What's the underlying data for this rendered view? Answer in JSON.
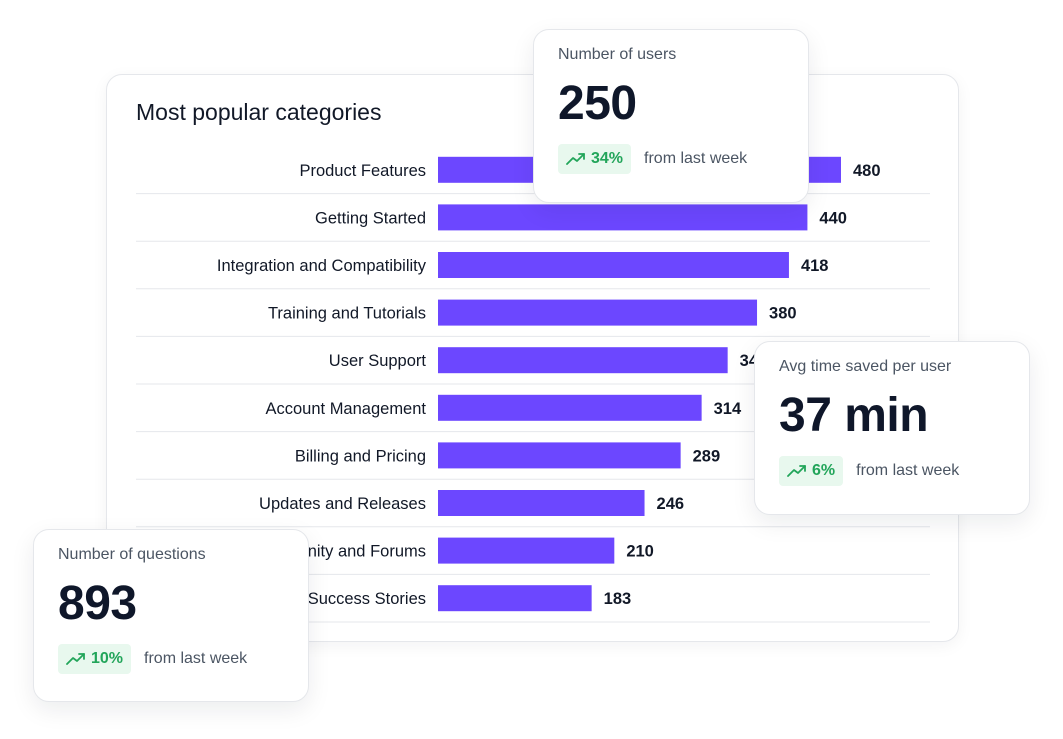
{
  "chart_data": {
    "type": "bar",
    "orientation": "horizontal",
    "title": "Most popular categories",
    "categories": [
      "Product Features",
      "Getting Started",
      "Integration and Compatibility",
      "Training and Tutorials",
      "User Support",
      "Account Management",
      "Billing and Pricing",
      "Updates and Releases",
      "Community and Forums",
      "Success Stories"
    ],
    "values": [
      480,
      440,
      418,
      380,
      345,
      314,
      289,
      246,
      210,
      183
    ],
    "bar_color": "#6c47ff",
    "grid": "row separators",
    "legend": "none"
  },
  "stats": [
    {
      "label": "Number of users",
      "value": "250",
      "change": "34%",
      "trend_icon": "trending-up-icon",
      "compare": "from last week"
    },
    {
      "label": "Avg time saved per user",
      "value": "37 min",
      "change": "6%",
      "trend_icon": "trending-up-icon",
      "compare": "from last week"
    },
    {
      "label": "Number of questions",
      "value": "893",
      "change": "10%",
      "trend_icon": "trending-up-icon",
      "compare": "from last week"
    }
  ],
  "colors": {
    "accent": "#6c47ff",
    "positive": "#22a55a",
    "positive_bg": "#e8f8ee"
  }
}
